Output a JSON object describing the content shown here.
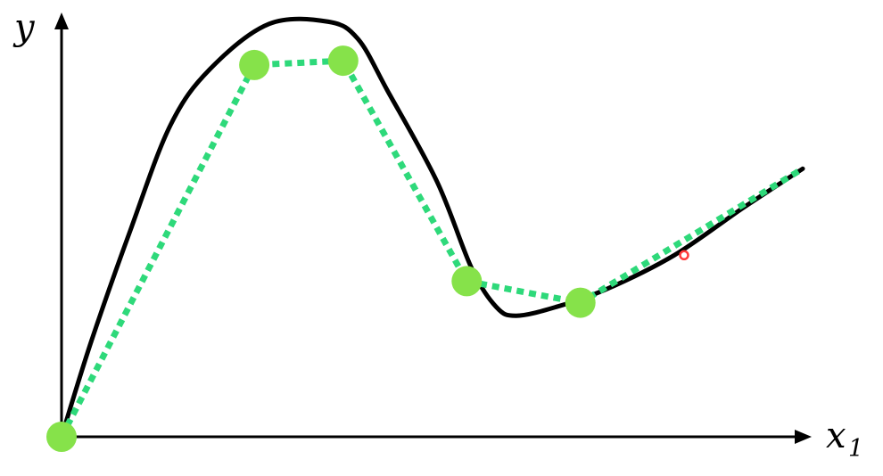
{
  "axes": {
    "y_label": "y",
    "x_label": "x",
    "x_subscript": "1"
  },
  "colors": {
    "axis": "#000000",
    "true_curve": "#000000",
    "approximation": "#2ed97a",
    "knot_fill": "#86e24a",
    "marker": "#ff3b3b"
  },
  "chart_data": {
    "type": "line",
    "xlabel": "x1",
    "ylabel": "y",
    "series": [
      {
        "role": "true-curve",
        "style": "solid",
        "x": [
          0.0,
          0.6,
          1.4,
          2.2,
          3.0,
          4.2,
          5.4,
          6.0,
          6.6,
          7.6,
          8.3,
          8.8,
          9.2,
          10.0,
          11.0,
          12.4,
          13.8,
          15.0
        ],
        "y": [
          0.0,
          2.2,
          4.8,
          7.2,
          8.5,
          9.55,
          9.6,
          9.2,
          8.0,
          5.9,
          3.9,
          3.0,
          2.8,
          3.0,
          3.4,
          4.2,
          5.3,
          6.2
        ]
      },
      {
        "role": "piecewise-linear-approximation",
        "style": "dotted",
        "x": [
          0.0,
          3.9,
          5.7,
          8.2,
          10.5,
          15.0
        ],
        "y": [
          0.0,
          8.6,
          8.7,
          3.6,
          3.1,
          6.2
        ]
      }
    ],
    "knots": {
      "x": [
        0.0,
        3.9,
        5.7,
        8.2,
        10.5
      ],
      "y": [
        0.0,
        8.6,
        8.7,
        3.6,
        3.1
      ]
    },
    "marker": {
      "x": 12.6,
      "y": 4.2
    }
  }
}
